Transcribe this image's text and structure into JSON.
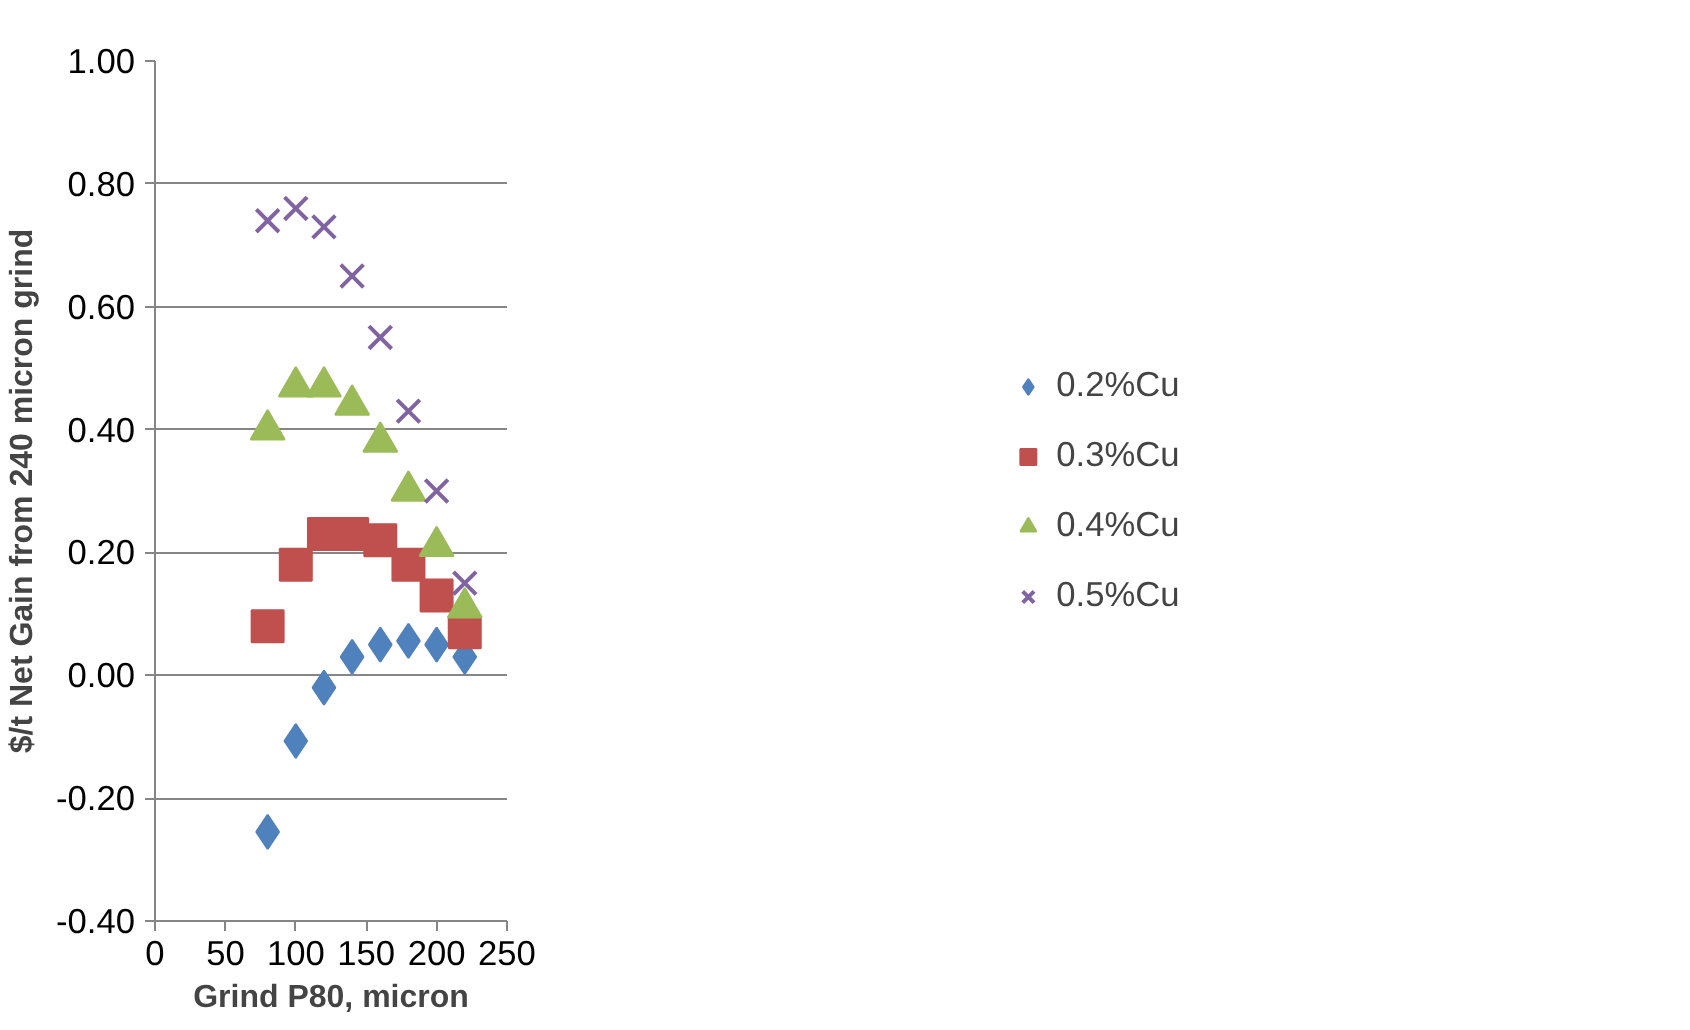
{
  "chart_data": {
    "type": "scatter",
    "xlabel": "Grind P80, micron",
    "ylabel": "$/t Net Gain from 240 micron grind",
    "x": [
      80,
      100,
      120,
      140,
      160,
      180,
      200,
      220
    ],
    "xlim": [
      0,
      250
    ],
    "xticks": [
      0,
      50,
      100,
      150,
      200,
      250
    ],
    "ylim": [
      -0.4,
      1.0
    ],
    "yticks": [
      {
        "value": -0.4,
        "label": "-0.40"
      },
      {
        "value": -0.2,
        "label": "-0.20"
      },
      {
        "value": 0,
        "label": "0.00"
      },
      {
        "value": 0.2,
        "label": "0.20"
      },
      {
        "value": 0.4,
        "label": "0.40"
      },
      {
        "value": 0.6,
        "label": "0.60"
      },
      {
        "value": 0.8,
        "label": "0.80"
      },
      {
        "value": 1.0,
        "label": "1.00"
      }
    ],
    "grid": "y",
    "legend": "right",
    "series": [
      {
        "name": "0.2%Cu",
        "color": "#4f81bd",
        "marker": "diamond",
        "values": [
          -0.255,
          -0.107,
          -0.02,
          0.03,
          0.05,
          0.056,
          0.05,
          0.03
        ]
      },
      {
        "name": "0.3%Cu",
        "color": "#c0504d",
        "marker": "square",
        "values": [
          0.08,
          0.18,
          0.23,
          0.23,
          0.22,
          0.18,
          0.13,
          0.07
        ]
      },
      {
        "name": "0.4%Cu",
        "color": "#9bbb59",
        "marker": "triangle",
        "values": [
          0.4,
          0.47,
          0.47,
          0.44,
          0.38,
          0.3,
          0.21,
          0.11
        ]
      },
      {
        "name": "0.5%Cu",
        "color": "#8064a2",
        "marker": "cross",
        "values": [
          0.74,
          0.76,
          0.73,
          0.65,
          0.55,
          0.43,
          0.3,
          0.15
        ]
      }
    ]
  }
}
